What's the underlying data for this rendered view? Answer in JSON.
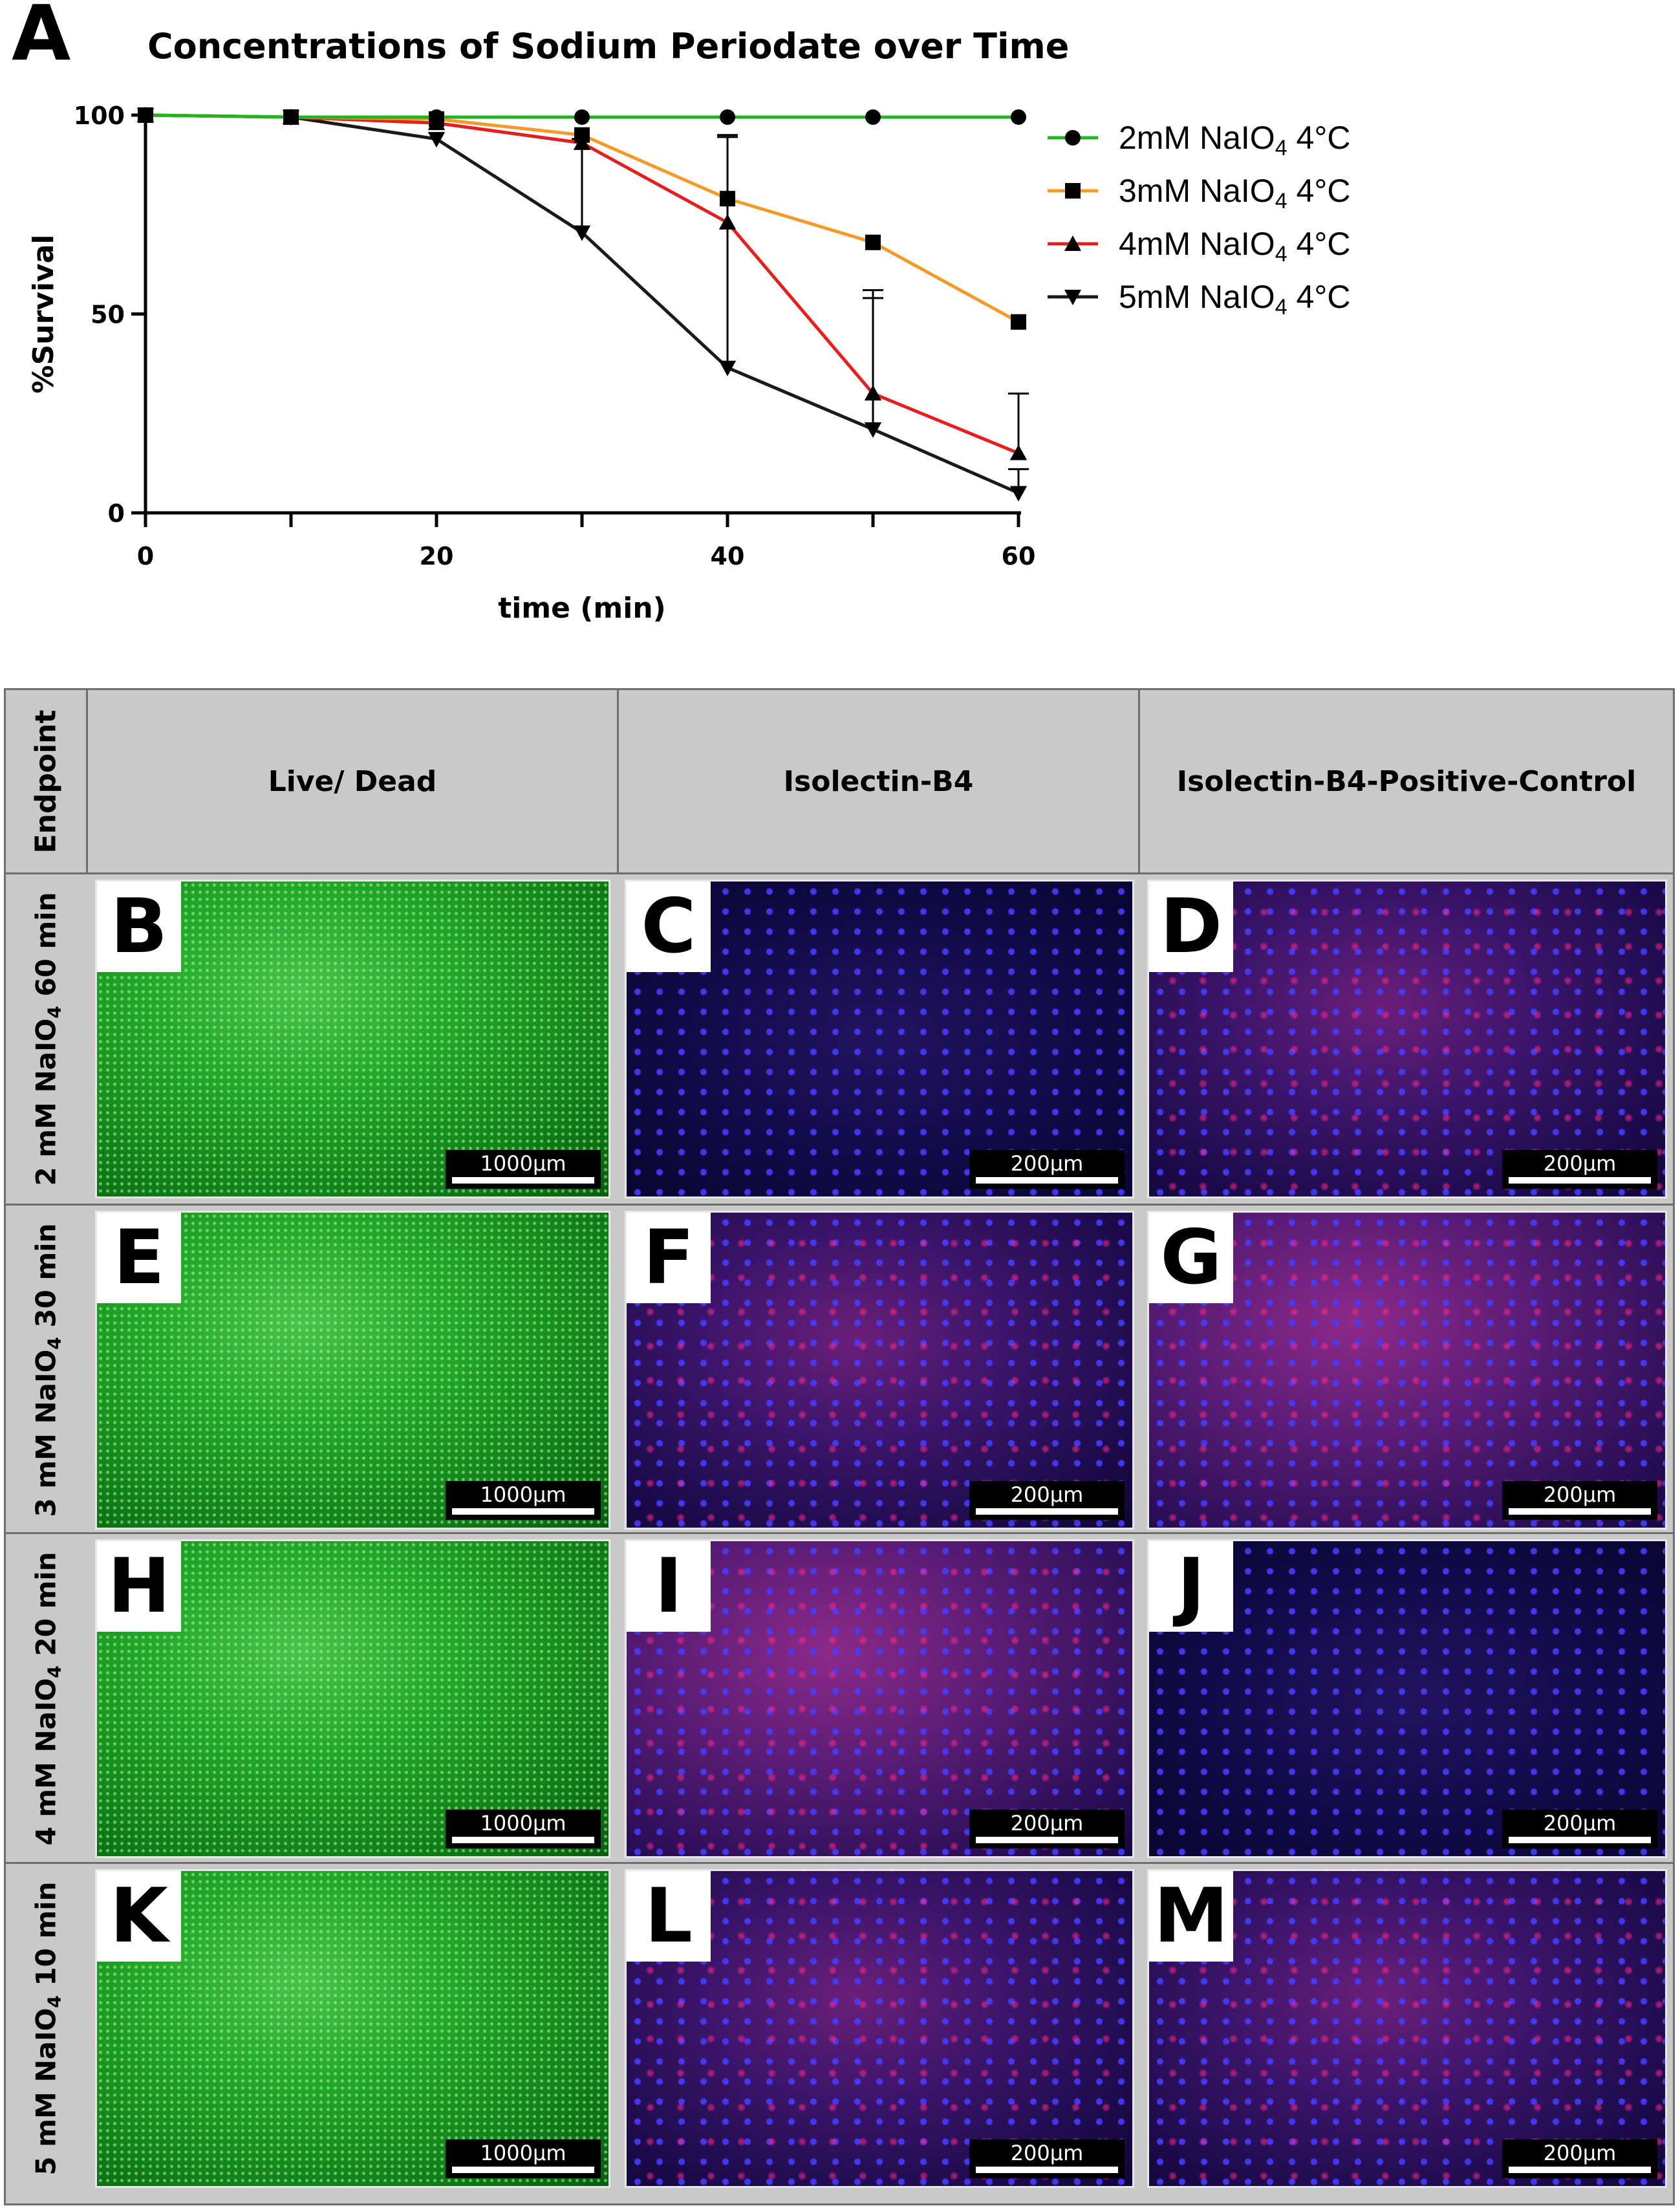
{
  "panel_a": {
    "letter": "A"
  },
  "chart_data": {
    "type": "line",
    "title": "Concentrations of Sodium Periodate over Time",
    "xlabel": "time (min)",
    "ylabel": "%Survival",
    "xlim": [
      0,
      60
    ],
    "ylim": [
      0,
      100
    ],
    "xticks": [
      0,
      20,
      40,
      60
    ],
    "yticks": [
      0,
      50,
      100
    ],
    "grid": false,
    "legend_position": "right",
    "x": [
      0,
      10,
      20,
      30,
      40,
      50,
      60
    ],
    "series": [
      {
        "name_main": "2mM NaIO",
        "name_sub": "4",
        "name_tail": " 4°C",
        "marker": "circle",
        "color": "#21b521",
        "values": [
          100,
          99.5,
          99.5,
          99.5,
          99.5,
          99.5,
          99.5
        ],
        "err": [
          0,
          0,
          0,
          0,
          0,
          0,
          0
        ]
      },
      {
        "name_main": "3mM NaIO",
        "name_sub": "4",
        "name_tail": " 4°C",
        "marker": "square",
        "color": "#f39a2a",
        "values": [
          100,
          99.5,
          99,
          95,
          79,
          68,
          48
        ],
        "err": [
          0,
          0,
          0,
          0,
          16,
          0,
          0
        ]
      },
      {
        "name_main": "4mM NaIO",
        "name_sub": "4",
        "name_tail": " 4°C",
        "marker": "triangle-up",
        "color": "#e3201e",
        "values": [
          100,
          99.5,
          98,
          93,
          73,
          30,
          15
        ],
        "err": [
          0,
          0,
          0,
          0,
          0,
          26,
          15
        ]
      },
      {
        "name_main": "5mM NaIO",
        "name_sub": "4",
        "name_tail": " 4°C",
        "marker": "triangle-down",
        "color": "#000000",
        "values": [
          100,
          99.5,
          94,
          70.5,
          36.5,
          21,
          5
        ],
        "err": [
          0,
          0,
          0,
          23.5,
          58,
          33,
          6
        ]
      }
    ]
  },
  "grid": {
    "corner_label": "Endpoint",
    "columns": [
      "Live/ Dead",
      "Isolectin-B4",
      "Isolectin-B4-Positive-Control"
    ],
    "rows": [
      {
        "label_pre": "2 mM NaIO",
        "label_sub": "4",
        "label_post": " 60 min",
        "cells": [
          {
            "letter": "B",
            "scale": "1000µm",
            "style": "green"
          },
          {
            "letter": "C",
            "scale": "200µm",
            "style": "blue"
          },
          {
            "letter": "D",
            "scale": "200µm",
            "style": "mix"
          }
        ]
      },
      {
        "label_pre": "3 mM NaIO",
        "label_sub": "4",
        "label_post": " 30 min",
        "cells": [
          {
            "letter": "E",
            "scale": "1000µm",
            "style": "green"
          },
          {
            "letter": "F",
            "scale": "200µm",
            "style": "mix"
          },
          {
            "letter": "G",
            "scale": "200µm",
            "style": "bright"
          }
        ]
      },
      {
        "label_pre": "4 mM NaIO",
        "label_sub": "4",
        "label_post": " 20 min",
        "cells": [
          {
            "letter": "H",
            "scale": "1000µm",
            "style": "green"
          },
          {
            "letter": "I",
            "scale": "200µm",
            "style": "bright"
          },
          {
            "letter": "J",
            "scale": "200µm",
            "style": "blue"
          }
        ]
      },
      {
        "label_pre": "5 mM NaIO",
        "label_sub": "4",
        "label_post": " 10 min",
        "cells": [
          {
            "letter": "K",
            "scale": "1000µm",
            "style": "green"
          },
          {
            "letter": "L",
            "scale": "200µm",
            "style": "mix"
          },
          {
            "letter": "M",
            "scale": "200µm",
            "style": "mix"
          }
        ]
      }
    ]
  }
}
